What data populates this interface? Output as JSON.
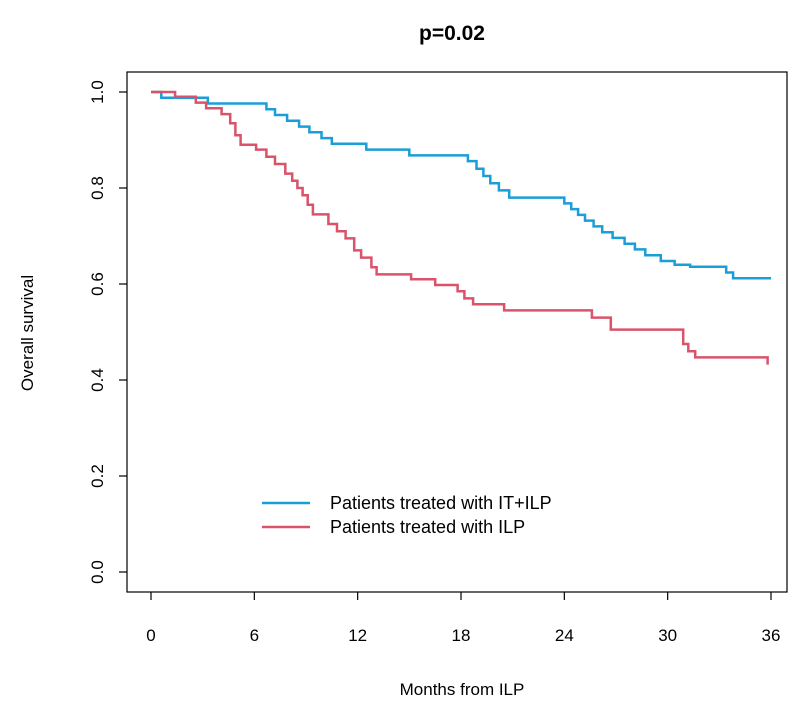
{
  "chart_data": {
    "type": "line",
    "title": "p=0.02",
    "xlabel": "Months from ILP",
    "ylabel": "Overall survival",
    "xlim": [
      0,
      36
    ],
    "ylim": [
      0,
      1
    ],
    "x_ticks": [
      "0",
      "6",
      "12",
      "18",
      "24",
      "30",
      "36"
    ],
    "y_ticks": [
      "0.0",
      "0.2",
      "0.4",
      "0.6",
      "0.8",
      "1.0"
    ],
    "x_tick_values": [
      0,
      6,
      12,
      18,
      24,
      30,
      36
    ],
    "y_tick_values": [
      0,
      0.2,
      0.4,
      0.6,
      0.8,
      1.0
    ],
    "grid": false,
    "legend_position": "bottom-center",
    "step": true,
    "series": [
      {
        "name": "Patients treated with IT+ILP",
        "color": "#1a9ed8",
        "x": [
          0,
          0.6,
          3.3,
          6.7,
          7.2,
          7.9,
          8.6,
          9.2,
          9.9,
          10.5,
          12.5,
          15,
          18.4,
          18.9,
          19.3,
          19.7,
          20.2,
          20.8,
          24,
          24.4,
          24.8,
          25.2,
          25.7,
          26.2,
          26.8,
          27.5,
          28.1,
          28.7,
          29.6,
          30.4,
          31.3,
          33.4,
          33.8,
          36
        ],
        "y": [
          1,
          0.988,
          0.976,
          0.964,
          0.952,
          0.94,
          0.928,
          0.916,
          0.904,
          0.892,
          0.88,
          0.868,
          0.856,
          0.84,
          0.825,
          0.81,
          0.795,
          0.78,
          0.768,
          0.756,
          0.744,
          0.732,
          0.72,
          0.708,
          0.696,
          0.684,
          0.672,
          0.66,
          0.648,
          0.64,
          0.636,
          0.624,
          0.612,
          0.612
        ]
      },
      {
        "name": "Patients treated with ILP",
        "color": "#d9536b",
        "x": [
          0,
          1,
          1.4,
          2.6,
          3.2,
          4.1,
          4.6,
          4.9,
          5.2,
          6.1,
          6.7,
          7.2,
          7.8,
          8.2,
          8.5,
          8.8,
          9.1,
          9.4,
          10.3,
          10.8,
          11.3,
          11.8,
          12.2,
          12.8,
          13.1,
          15.1,
          16.5,
          17.8,
          18.2,
          18.7,
          20.5,
          25.6,
          26.7,
          30.9,
          31.2,
          31.6,
          35.8
        ],
        "y": [
          1,
          1,
          0.99,
          0.978,
          0.966,
          0.954,
          0.935,
          0.91,
          0.89,
          0.88,
          0.865,
          0.85,
          0.83,
          0.815,
          0.8,
          0.785,
          0.765,
          0.745,
          0.725,
          0.71,
          0.695,
          0.67,
          0.655,
          0.635,
          0.62,
          0.61,
          0.598,
          0.585,
          0.57,
          0.558,
          0.545,
          0.53,
          0.505,
          0.475,
          0.46,
          0.447,
          0.432
        ]
      }
    ]
  }
}
